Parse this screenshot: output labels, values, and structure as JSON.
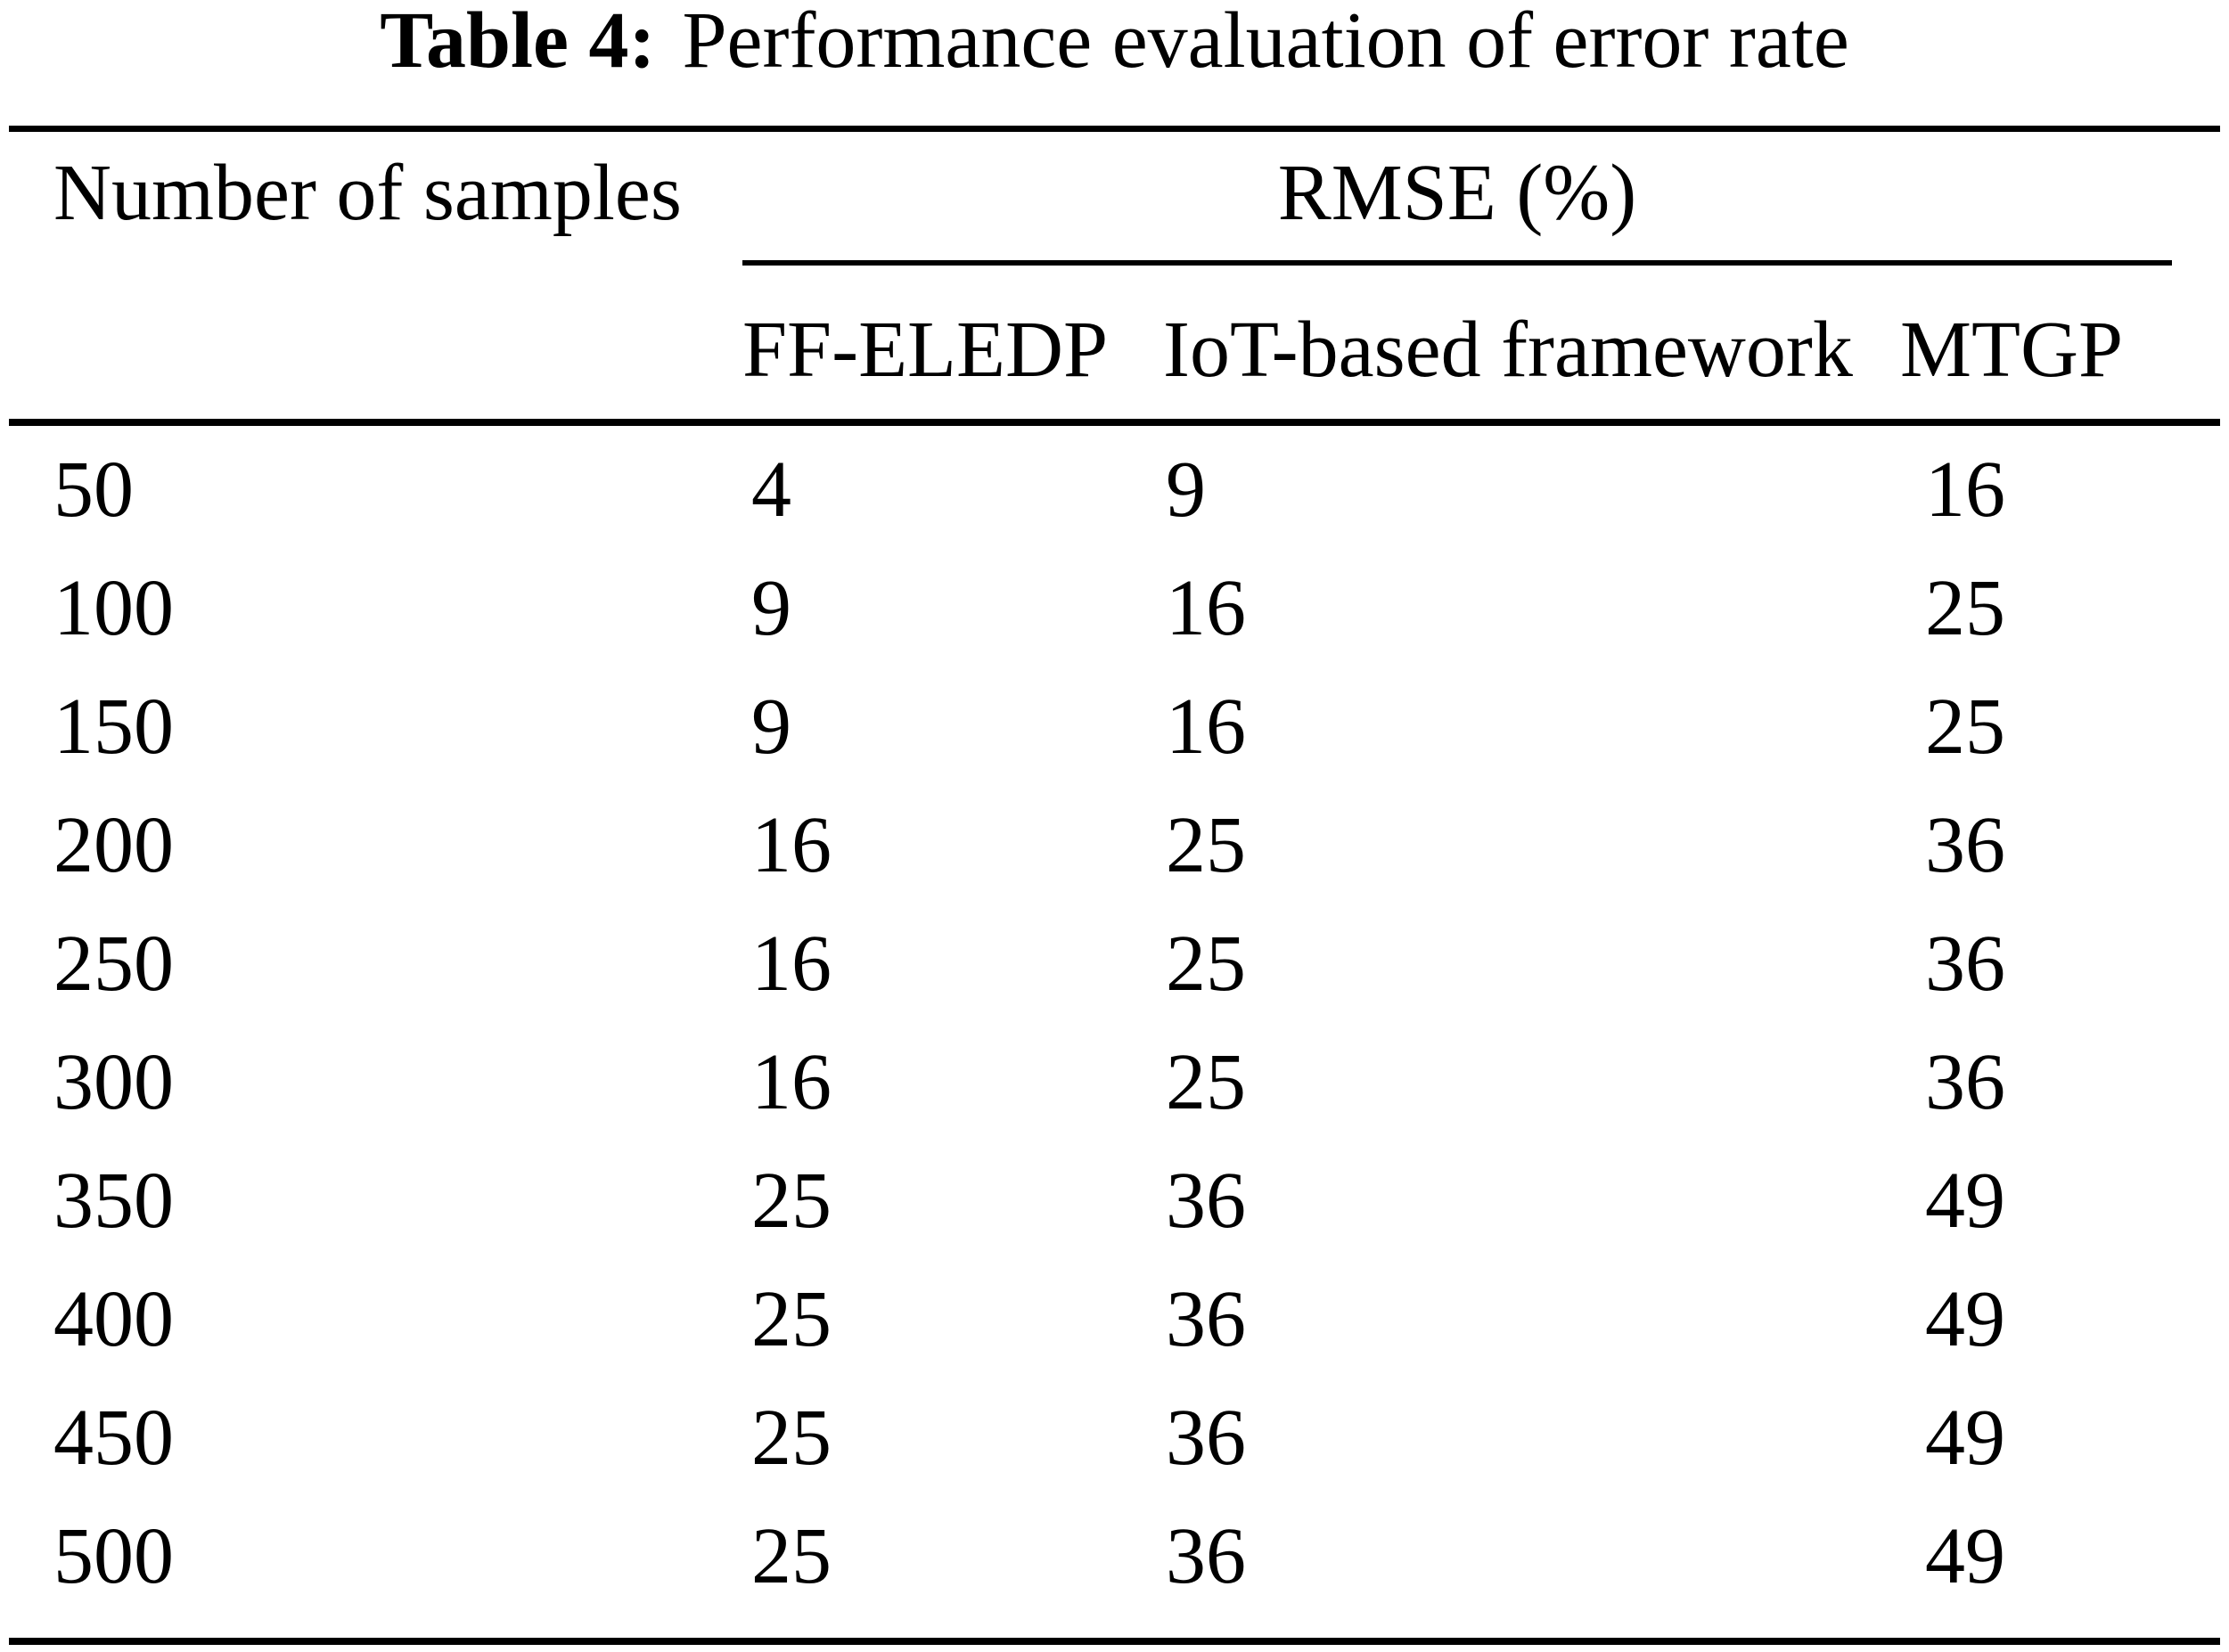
{
  "title": {
    "prefix": "Table 4:",
    "text": "Performance evaluation of error rate"
  },
  "table": {
    "col1_header": "Number of samples",
    "group_header": "RMSE (%)",
    "sub_headers": [
      "FF-ELEDP",
      "IoT-based framework",
      "MTGP"
    ],
    "rows": [
      {
        "samples": "50",
        "ff_eledp": "4",
        "iot_framework": "9",
        "mtgp": "16"
      },
      {
        "samples": "100",
        "ff_eledp": "9",
        "iot_framework": "16",
        "mtgp": "25"
      },
      {
        "samples": "150",
        "ff_eledp": "9",
        "iot_framework": "16",
        "mtgp": "25"
      },
      {
        "samples": "200",
        "ff_eledp": "16",
        "iot_framework": "25",
        "mtgp": "36"
      },
      {
        "samples": "250",
        "ff_eledp": "16",
        "iot_framework": "25",
        "mtgp": "36"
      },
      {
        "samples": "300",
        "ff_eledp": "16",
        "iot_framework": "25",
        "mtgp": "36"
      },
      {
        "samples": "350",
        "ff_eledp": "25",
        "iot_framework": "36",
        "mtgp": "49"
      },
      {
        "samples": "400",
        "ff_eledp": "25",
        "iot_framework": "36",
        "mtgp": "49"
      },
      {
        "samples": "450",
        "ff_eledp": "25",
        "iot_framework": "36",
        "mtgp": "49"
      },
      {
        "samples": "500",
        "ff_eledp": "25",
        "iot_framework": "36",
        "mtgp": "49"
      }
    ]
  },
  "colors": {
    "background": "#ffffff",
    "text": "#000000",
    "rule": "#000000"
  }
}
